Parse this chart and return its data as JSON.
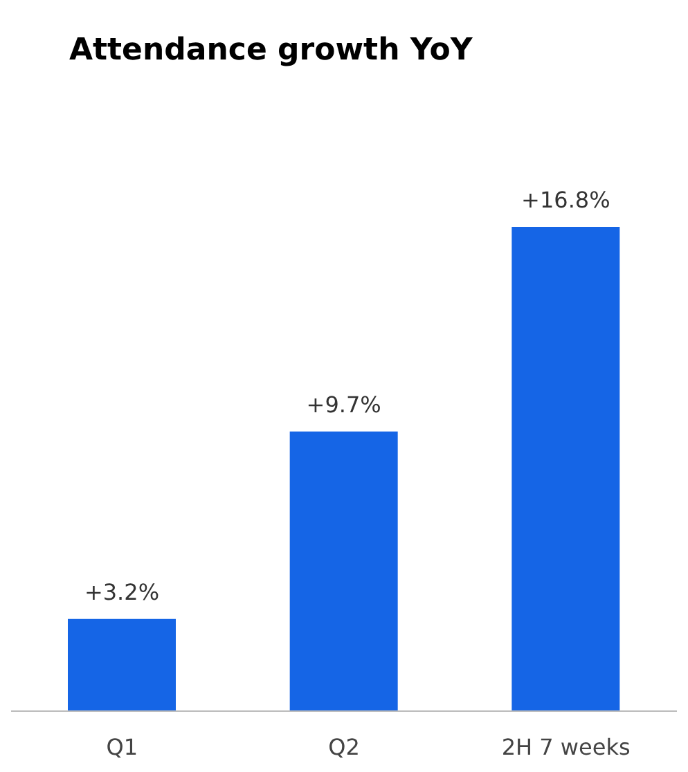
{
  "chart_data": {
    "type": "bar",
    "title": "Attendance growth YoY",
    "categories": [
      "Q1",
      "Q2",
      "2H 7 weeks"
    ],
    "values": [
      3.2,
      9.7,
      16.8
    ],
    "value_labels": [
      "+3.2%",
      "+9.7%",
      "+16.8%"
    ],
    "colors": [
      "#1565e6",
      "#1565e6",
      "#1565e6"
    ],
    "grid": false,
    "legend": false
  }
}
